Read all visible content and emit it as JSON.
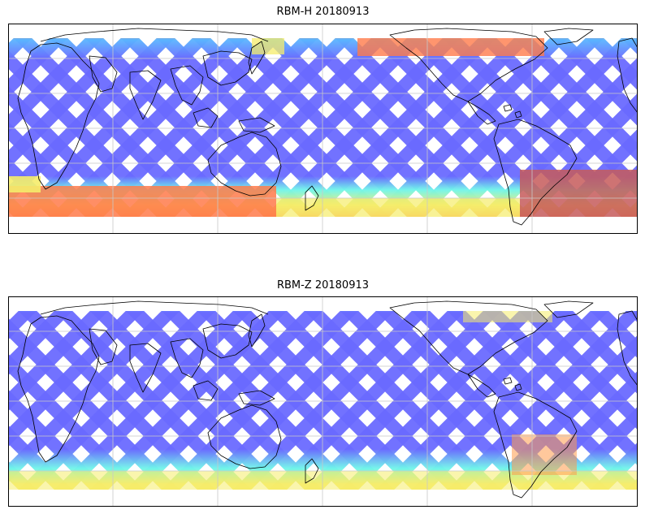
{
  "panels": [
    {
      "title": "RBM-H 20180913",
      "palette": {
        "low": "#6a6aff",
        "mid_low": "#5ab4ff",
        "mid": "#6ff5ea",
        "mid_high": "#f5ec6a",
        "high": "#ff7a4a",
        "max": "#c65a5a"
      }
    },
    {
      "title": "RBM-Z 20180913",
      "palette": {
        "low": "#6a6aff",
        "mid_low": "#5ab4ff",
        "mid": "#6ff5ea",
        "mid_high": "#f5ec6a",
        "high": "#ff9a4a",
        "max": "#c65a5a"
      }
    }
  ]
}
